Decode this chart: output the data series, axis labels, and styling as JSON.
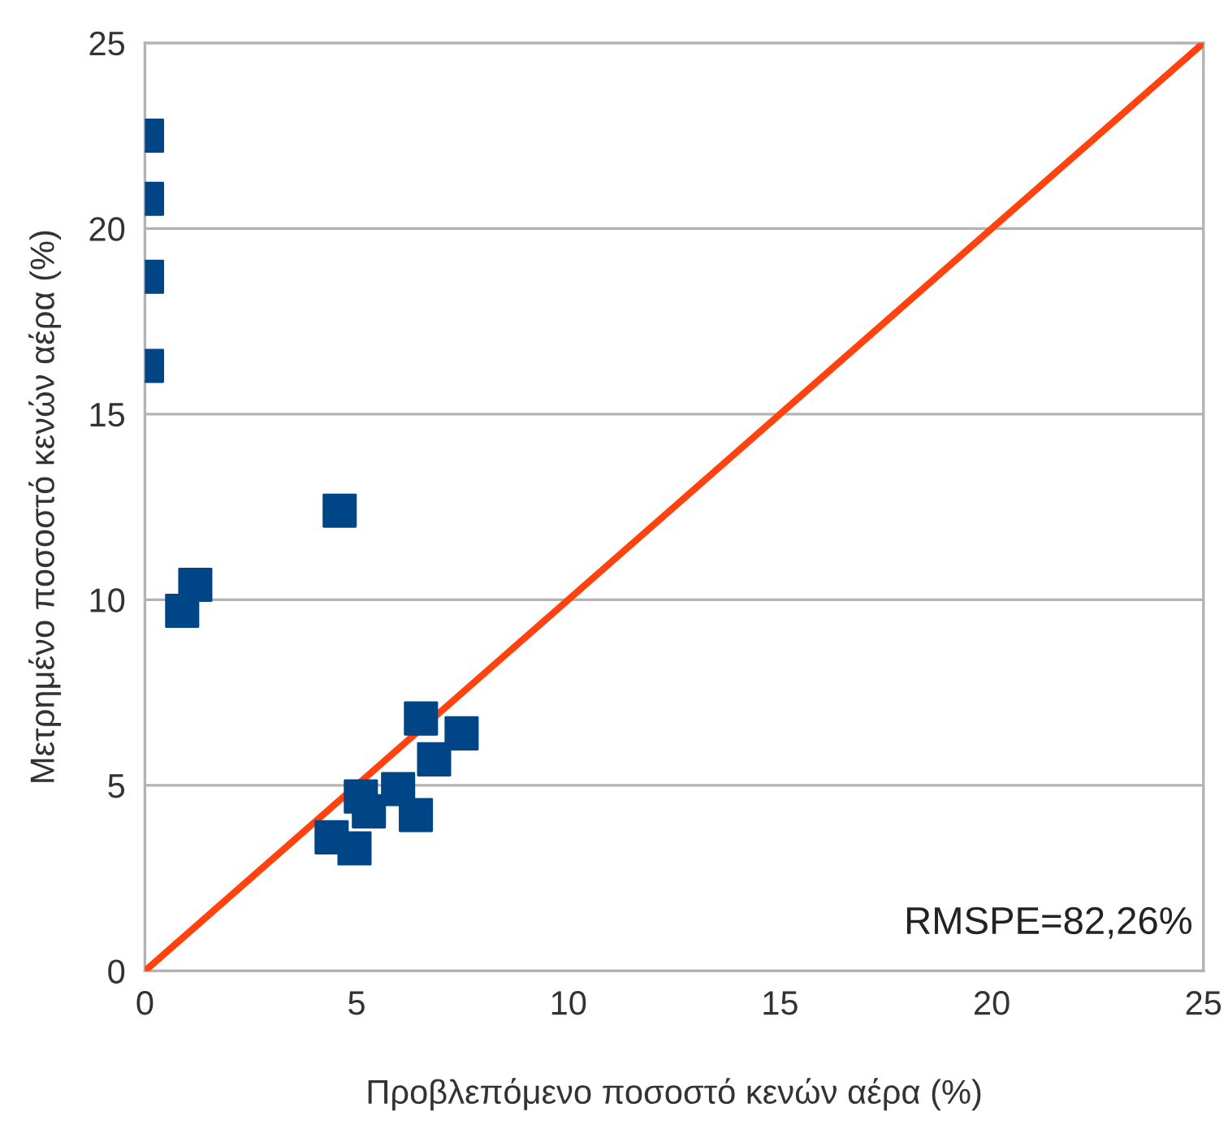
{
  "chart_data": {
    "type": "scatter",
    "xlabel": "Προβλεπόμενο ποσοστό κενών αέρα (%)",
    "ylabel": "Μετρημένο ποσοστό κενών αέρα (%)",
    "series": [
      {
        "color": "#004586",
        "marker": "square",
        "x": [
          0.05,
          0.05,
          0.05,
          0.05,
          4.6,
          1.19,
          0.88,
          6.52,
          7.48,
          6.83,
          5.1,
          5.98,
          5.29,
          6.4,
          4.41,
          4.95
        ],
        "values": [
          22.5,
          20.8,
          18.7,
          16.3,
          12.4,
          10.4,
          9.7,
          6.8,
          6.4,
          5.7,
          4.7,
          4.9,
          4.3,
          4.2,
          3.6,
          3.3
        ]
      },
      {
        "type": "line",
        "color": "#ff420e",
        "marker": "none",
        "x": [
          0,
          25
        ],
        "values": [
          0,
          25
        ]
      }
    ],
    "xlim": [
      0,
      25
    ],
    "ylim": [
      0,
      25
    ],
    "xticks": [
      0,
      5,
      10,
      15,
      20,
      25
    ],
    "yticks": [
      0,
      5,
      10,
      15,
      20,
      25
    ],
    "grid": "y",
    "annotations": [
      "RMSPE=82,26%"
    ]
  }
}
